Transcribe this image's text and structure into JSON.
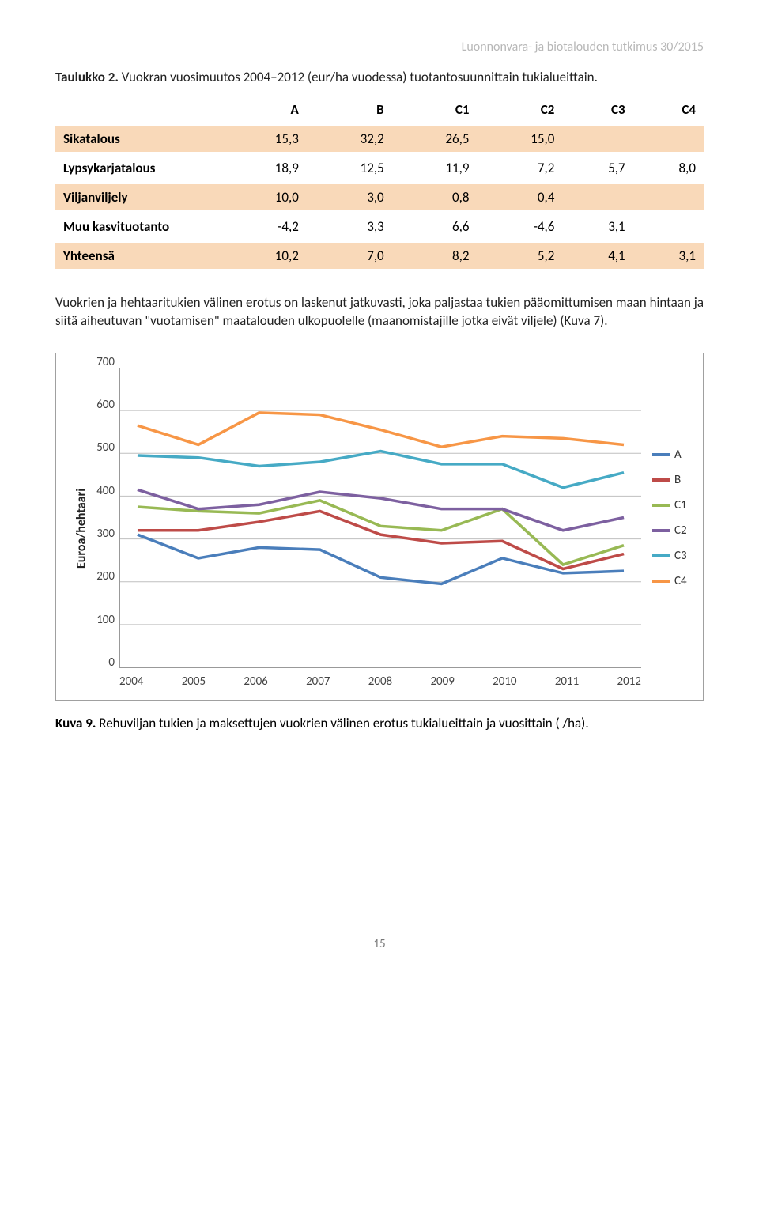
{
  "header": {
    "right": "Luonnonvara- ja biotalouden tutkimus 30/2015"
  },
  "table_caption": {
    "bold": "Taulukko 2.",
    "rest": " Vuokran vuosimuutos 2004–2012 (eur/ha vuodessa) tuotantosuunnittain tukialueittain."
  },
  "table": {
    "columns": [
      "",
      "A",
      "B",
      "C1",
      "C2",
      "C3",
      "C4"
    ],
    "rows": [
      {
        "label": "Sikatalous",
        "cells": [
          "15,3",
          "32,2",
          "26,5",
          "15,0",
          "",
          ""
        ],
        "shade": true
      },
      {
        "label": "Lypsykarjatalous",
        "cells": [
          "18,9",
          "12,5",
          "11,9",
          "7,2",
          "5,7",
          "8,0"
        ],
        "shade": false
      },
      {
        "label": "Viljanviljely",
        "cells": [
          "10,0",
          "3,0",
          "0,8",
          "0,4",
          "",
          ""
        ],
        "shade": true
      },
      {
        "label": "Muu kasvituotanto",
        "cells": [
          "-4,2",
          "3,3",
          "6,6",
          "-4,6",
          "3,1",
          ""
        ],
        "shade": false
      },
      {
        "label": "Yhteensä",
        "cells": [
          "10,2",
          "7,0",
          "8,2",
          "5,2",
          "4,1",
          "3,1"
        ],
        "shade": true
      }
    ]
  },
  "paragraph": "Vuokrien ja hehtaaritukien välinen erotus on laskenut jatkuvasti, joka paljastaa tukien pääomittumisen maan hintaan ja siitä aiheutuvan \"vuotamisen\" maatalouden ulkopuolelle (maanomistajille jotka eivät viljele) (Kuva 7).",
  "chart": {
    "type": "line",
    "ylabel": "Euroa/hehtaari",
    "ylim": [
      0,
      700
    ],
    "ytick_step": 100,
    "yticks": [
      "700",
      "600",
      "500",
      "400",
      "300",
      "200",
      "100",
      "0"
    ],
    "xcats": [
      "2004",
      "2005",
      "2006",
      "2007",
      "2008",
      "2009",
      "2010",
      "2011",
      "2012"
    ],
    "grid_color": "#bfbfbf",
    "line_width": 3.5,
    "series": [
      {
        "name": "A",
        "color": "#4a7ebb",
        "data": [
          310,
          255,
          280,
          275,
          210,
          195,
          255,
          220,
          225
        ]
      },
      {
        "name": "B",
        "color": "#be4b48",
        "data": [
          320,
          320,
          340,
          365,
          310,
          290,
          295,
          230,
          265
        ]
      },
      {
        "name": "C1",
        "color": "#98b954",
        "data": [
          375,
          365,
          360,
          390,
          330,
          320,
          370,
          240,
          285
        ]
      },
      {
        "name": "C2",
        "color": "#7d60a0",
        "data": [
          415,
          370,
          380,
          410,
          395,
          370,
          370,
          320,
          350
        ]
      },
      {
        "name": "C3",
        "color": "#46aac5",
        "data": [
          495,
          490,
          470,
          480,
          505,
          475,
          475,
          420,
          455
        ]
      },
      {
        "name": "C4",
        "color": "#f79646",
        "data": [
          565,
          520,
          595,
          590,
          555,
          515,
          540,
          535,
          520
        ]
      }
    ]
  },
  "fig_caption": {
    "bold": "Kuva 9.",
    "rest": " Rehuviljan tukien ja maksettujen vuokrien välinen erotus tukialueittain ja vuosittain ( /ha)."
  },
  "pagenum": "15"
}
